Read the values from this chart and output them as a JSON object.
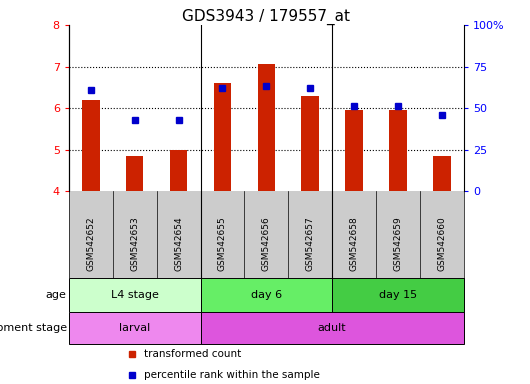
{
  "title": "GDS3943 / 179557_at",
  "samples": [
    "GSM542652",
    "GSM542653",
    "GSM542654",
    "GSM542655",
    "GSM542656",
    "GSM542657",
    "GSM542658",
    "GSM542659",
    "GSM542660"
  ],
  "transformed_count": [
    6.2,
    4.85,
    5.0,
    6.6,
    7.05,
    6.3,
    5.95,
    5.95,
    4.85
  ],
  "percentile_rank": [
    61,
    43,
    43,
    62,
    63,
    62,
    51,
    51,
    46
  ],
  "ylim": [
    4,
    8
  ],
  "y_ticks": [
    4,
    5,
    6,
    7,
    8
  ],
  "y2_ticks": [
    0,
    25,
    50,
    75,
    100
  ],
  "y2_labels": [
    "0",
    "25",
    "50",
    "75",
    "100%"
  ],
  "bar_color": "#cc2200",
  "dot_color": "#0000cc",
  "age_groups": [
    {
      "label": "L4 stage",
      "start": 0,
      "end": 3,
      "color": "#ccffcc"
    },
    {
      "label": "day 6",
      "start": 3,
      "end": 6,
      "color": "#66ee66"
    },
    {
      "label": "day 15",
      "start": 6,
      "end": 9,
      "color": "#44cc44"
    }
  ],
  "dev_groups": [
    {
      "label": "larval",
      "start": 0,
      "end": 3,
      "color": "#ee88ee"
    },
    {
      "label": "adult",
      "start": 3,
      "end": 9,
      "color": "#dd55dd"
    }
  ],
  "label_age": "age",
  "label_dev": "development stage",
  "legend_bar": "transformed count",
  "legend_dot": "percentile rank within the sample",
  "bg_color": "#ffffff",
  "sample_label_bg": "#cccccc",
  "title_fontsize": 11
}
